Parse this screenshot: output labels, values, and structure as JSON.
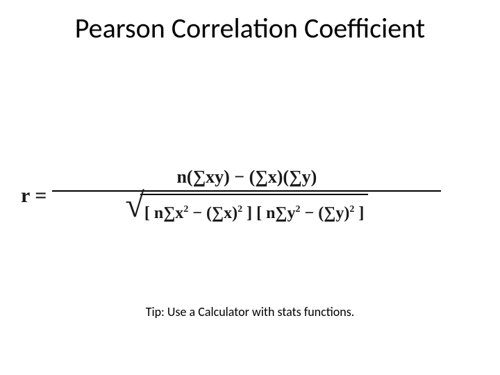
{
  "slide": {
    "title": "Pearson Correlation Coefficient",
    "tip": "Tip: Use a Calculator with stats functions.",
    "formula": {
      "lhs": "r  =",
      "numerator": "n(∑xy) − (∑x)(∑y)",
      "radicand_part1": "[ n∑x",
      "radicand_sup1": "2",
      "radicand_part2": " − (∑x)",
      "radicand_sup2": "2",
      "radicand_part3": " ] [ n∑y",
      "radicand_sup3": "2",
      "radicand_part4": " − (∑y)",
      "radicand_sup4": "2",
      "radicand_part5": " ]",
      "radical_glyph": "√"
    }
  },
  "style": {
    "background_color": "#ffffff",
    "title_fontsize": 40,
    "title_color": "#000000",
    "formula_color": "#1a1a1a",
    "tip_fontsize": 18,
    "frac_bar_width": 560
  }
}
